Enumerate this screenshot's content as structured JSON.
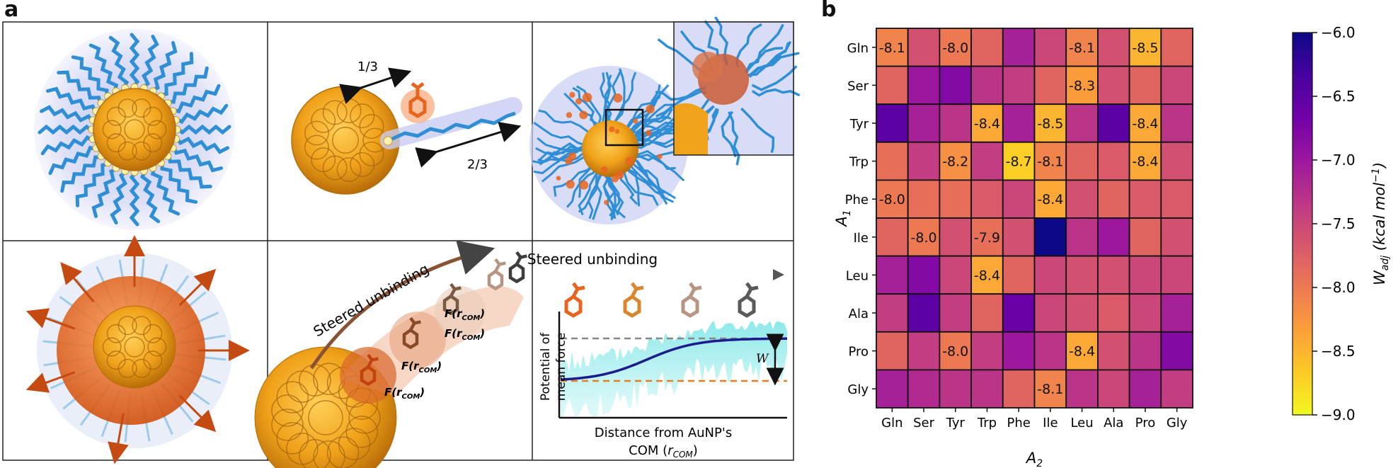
{
  "panel_a": {
    "letter": "a",
    "ratio_1": "1/3",
    "ratio_2": "2/3",
    "steered_label": "Steered unbinding",
    "force_label_pre": "F(r",
    "force_label_sub": "COM",
    "force_label_post": ")",
    "pmf_title": "Steered unbinding",
    "pmf_ylabel_1": "Potential of",
    "pmf_ylabel_2": "mean force",
    "pmf_xlabel_1": "Distance from AuNP's",
    "pmf_xlabel_2": "COM (",
    "pmf_xlabel_var": "r",
    "pmf_xlabel_sub": "COM",
    "pmf_xlabel_end": ")",
    "pmf_w": "W",
    "colors": {
      "gold": "#f0a21a",
      "gold_dark": "#c97a0c",
      "ligand_blue": "#2f8fd6",
      "halo": "#c9cdf2",
      "orange_mol": "#e8651f",
      "tan_mol": "#b69682",
      "grey_mol": "#5a5a5a",
      "cyan_noise": "#7fe6e6",
      "pmf_line": "#1c1c8c"
    }
  },
  "panel_b": {
    "letter": "b"
  },
  "chart_data": {
    "type": "heatmap",
    "title": "",
    "xlabel": "A2",
    "ylabel": "A1",
    "x_categories": [
      "Gln",
      "Ser",
      "Tyr",
      "Trp",
      "Phe",
      "Ile",
      "Leu",
      "Ala",
      "Pro",
      "Gly"
    ],
    "y_categories": [
      "Gln",
      "Ser",
      "Tyr",
      "Trp",
      "Phe",
      "Ile",
      "Leu",
      "Ala",
      "Pro",
      "Gly"
    ],
    "values": [
      [
        -8.1,
        -7.6,
        -8.0,
        -7.8,
        -7.1,
        -7.5,
        -8.1,
        -7.6,
        -8.5,
        -7.8
      ],
      [
        -7.8,
        -7.0,
        -6.8,
        -7.3,
        -7.4,
        -7.8,
        -8.3,
        -7.6,
        -7.8,
        -7.5
      ],
      [
        -6.5,
        -7.1,
        -7.3,
        -8.4,
        -7.1,
        -8.5,
        -7.3,
        -6.5,
        -8.4,
        -7.3
      ],
      [
        -7.9,
        -7.4,
        -8.2,
        -7.4,
        -8.7,
        -8.1,
        -7.8,
        -7.7,
        -8.4,
        -7.6
      ],
      [
        -8.0,
        -7.9,
        -7.9,
        -7.7,
        -7.5,
        -8.4,
        -7.6,
        -7.8,
        -7.7,
        -7.7
      ],
      [
        -7.8,
        -8.0,
        -7.6,
        -7.9,
        -7.6,
        -6.0,
        -7.3,
        -7.0,
        -7.8,
        -7.6
      ],
      [
        -7.1,
        -6.8,
        -7.5,
        -8.4,
        -7.8,
        -7.5,
        -7.6,
        -7.6,
        -7.5,
        -7.5
      ],
      [
        -7.4,
        -6.5,
        -7.4,
        -7.8,
        -6.6,
        -7.5,
        -7.6,
        -7.7,
        -7.5,
        -7.1
      ],
      [
        -7.8,
        -7.4,
        -8.0,
        -7.4,
        -7.0,
        -7.3,
        -8.4,
        -7.6,
        -7.3,
        -6.8
      ],
      [
        -7.1,
        -7.2,
        -7.3,
        -7.3,
        -7.8,
        -8.1,
        -7.3,
        -7.5,
        -7.1,
        -7.4
      ]
    ],
    "labeled_cells": [
      [
        0,
        0
      ],
      [
        0,
        2
      ],
      [
        0,
        6
      ],
      [
        0,
        8
      ],
      [
        1,
        6
      ],
      [
        2,
        3
      ],
      [
        2,
        5
      ],
      [
        2,
        8
      ],
      [
        3,
        2
      ],
      [
        3,
        4
      ],
      [
        3,
        5
      ],
      [
        3,
        8
      ],
      [
        4,
        0
      ],
      [
        4,
        5
      ],
      [
        5,
        1
      ],
      [
        5,
        3
      ],
      [
        6,
        3
      ],
      [
        8,
        2
      ],
      [
        8,
        6
      ],
      [
        9,
        5
      ]
    ],
    "colorbar": {
      "label_main": "W",
      "label_sub": "adj",
      "label_units": " (kcal mol",
      "label_exp": "−1",
      "label_close": ")",
      "vmin": -9.0,
      "vmax": -6.0,
      "ticks": [
        -6.0,
        -6.5,
        -7.0,
        -7.5,
        -8.0,
        -8.5,
        -9.0
      ],
      "tick_labels": [
        "−6.0",
        "−6.5",
        "−7.0",
        "−7.5",
        "−8.0",
        "−8.5",
        "−9.0"
      ],
      "colormap": "plasma_r"
    },
    "grid": false
  }
}
